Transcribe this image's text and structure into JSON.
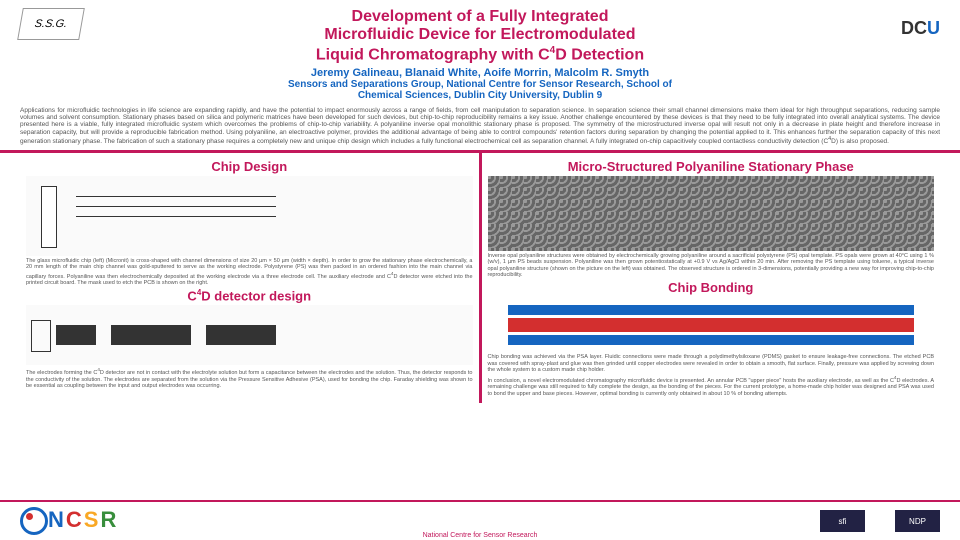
{
  "logos": {
    "left": "S.S.G.",
    "rightPrefix": "DC",
    "rightSuffix": "U"
  },
  "title": {
    "line1": "Development of a Fully Integrated",
    "line2": "Microfluidic Device for Electromodulated",
    "line3": "Liquid Chromatography with C<sup>4</sup>D Detection"
  },
  "authors": "Jeremy Galineau, Blanaid White, Aoife Morrin, Malcolm R. Smyth",
  "affiliation": {
    "line1": "Sensors and Separations Group, National Centre for Sensor Research, School of",
    "line2": "Chemical Sciences, Dublin City University, Dublin 9"
  },
  "abstract": "Applications for microfluidic technologies in life science are expanding rapidly, and have the potential to impact enormously across a range of fields, from cell manipulation to separation science. In separation science their small channel dimensions make them ideal for high throughput separations, reducing sample volumes and solvent consumption. Stationary phases based on silica and polymeric matrices have been developed for such devices, but chip-to-chip reproducibility remains a key issue. Another challenge encountered by these devices is that they need to be fully integrated into overall analytical systems. The device presented here is a viable, fully integrated microfluidic system which overcomes the problems of chip-to-chip variability. A polyaniline inverse opal monolithic stationary phase is proposed. The symmetry of the microstructured inverse opal will result not only in a decrease in plate height and therefore increase in separation capacity, but will provide a reproducible fabrication method. Using polyaniline, an electroactive polymer, provides the additional advantage of being able to control compounds' retention factors during separation by changing the potential applied to it. This enhances further the separation capacity of this next generation stationary phase. The fabrication of such a stationary phase requires a completely new and unique chip design which includes a fully functional electrochemical cell as separation channel. A fully integrated on-chip capacitively coupled contactless conductivity detection (C<sup>4</sup>D) is also proposed.",
  "sections": {
    "chipDesign": {
      "title": "Chip Design",
      "text": "The glass microfluidic chip (left) (Micronit) is cross-shaped with channel dimensions of size 20 µm × 50 µm (width × depth). In order to grow the stationary phase electrochemically, a 20 mm length of the main chip channel was gold-sputtered to serve as the working electrode. Polystyrene (PS) was then packed in an ordered fashion into the main channel via capillary forces. Polyaniline was then electrochemically deposited at the working electrode via a three electrode cell. The auxiliary electrode and C<sup>4</sup>D detector were etched into the printed circuit board. The mask used to etch the PCB is shown on the right."
    },
    "c4d": {
      "title": "C<sup>4</sup>D detector design",
      "text": "The electrodes forming the C<sup>4</sup>D detector are not in contact with the electrolyte solution but form a capacitance between the electrodes and the solution. Thus, the detector responds to the conductivity of the solution. The electrodes are separated from the solution via the Pressure Sensitive Adhesive (PSA), used for bonding the chip. Faraday shielding was shown to be essential as coupling between the input and output electrodes was occurring."
    },
    "stationaryPhase": {
      "title": "Micro-Structured Polyaniline Stationary Phase",
      "text": "Inverse opal polyaniline structures were obtained by electrochemically growing polyaniline around a sacrificial polystyrene (PS) opal template. PS opals were grown at 40°C using 1 % (w/v), 1 µm PS beads suspension. Polyaniline was then grown potentiostatically at +0.9 V vs Ag/AgCl within 20 min. After removing the PS template using toluene, a typical inverse opal polyaniline structure (shown on the picture on the left) was obtained. The observed structure is ordered in 3-dimensions, potentially providing a new way for improving chip-to-chip reproducibility."
    },
    "bonding": {
      "title": "Chip Bonding",
      "text1": "Chip bonding was achieved via the PSA layer. Fluidic connections were made through a polydimethylsiloxane (PDMS) gasket to ensure leakage-free connections. The etched PCB was covered with spray-plast and glue was then grinded until copper electrodes were revealed in order to obtain a smooth, flat surface. Finally, pressure was applied by screwing down the whole system to a custom made chip holder.",
      "text2": "In conclusion, a novel electromodulated chromatography microfluidic device is presented. An annular PCB \"upper piece\" hosts the auxiliary electrode, as well as the C<sup>4</sup>D electrodes. A remaining challenge was still required to fully complete the design, as the bonding of the pieces. For the current prototype, a home-made chip holder was designed and PSA was used to bond the upper and base pieces. However, optimal bonding is currently only obtained in about 10 % of bonding attempts."
    }
  },
  "footer": {
    "ncsr": "NCSR",
    "sub": "National Centre for Sensor Research",
    "sponsor1": "sfi",
    "sponsor2": "NDP"
  },
  "colors": {
    "accent": "#c2185b",
    "blue": "#1565c0",
    "red": "#d32f2f"
  }
}
